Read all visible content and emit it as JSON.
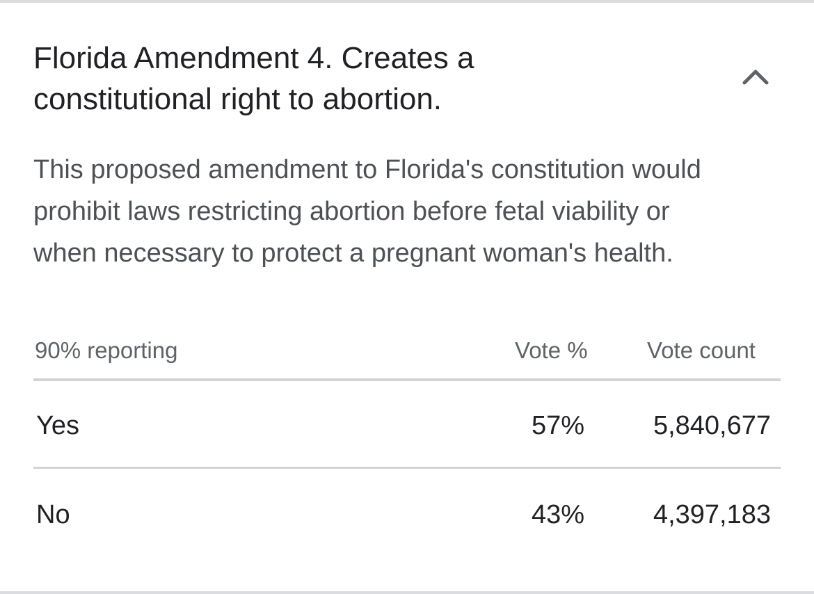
{
  "header": {
    "title": "Florida Amendment 4. Creates a constitutional right to abortion."
  },
  "description": "This proposed amendment to Florida's constitution would prohibit laws restricting abortion before fetal viability or when necessary to protect a pregnant woman's health.",
  "table": {
    "reporting": "90% reporting",
    "columns": [
      "Vote %",
      "Vote count"
    ],
    "rows": [
      {
        "choice": "Yes",
        "vote_pct": "57%",
        "vote_count": "5,840,677"
      },
      {
        "choice": "No",
        "vote_pct": "43%",
        "vote_count": "4,397,183"
      }
    ]
  },
  "icons": {
    "collapse": "chevron-up-icon"
  },
  "colors": {
    "title_text": "#202124",
    "body_text": "#4d5156",
    "secondary_text": "#5f6368",
    "divider": "#d3d3d3"
  }
}
